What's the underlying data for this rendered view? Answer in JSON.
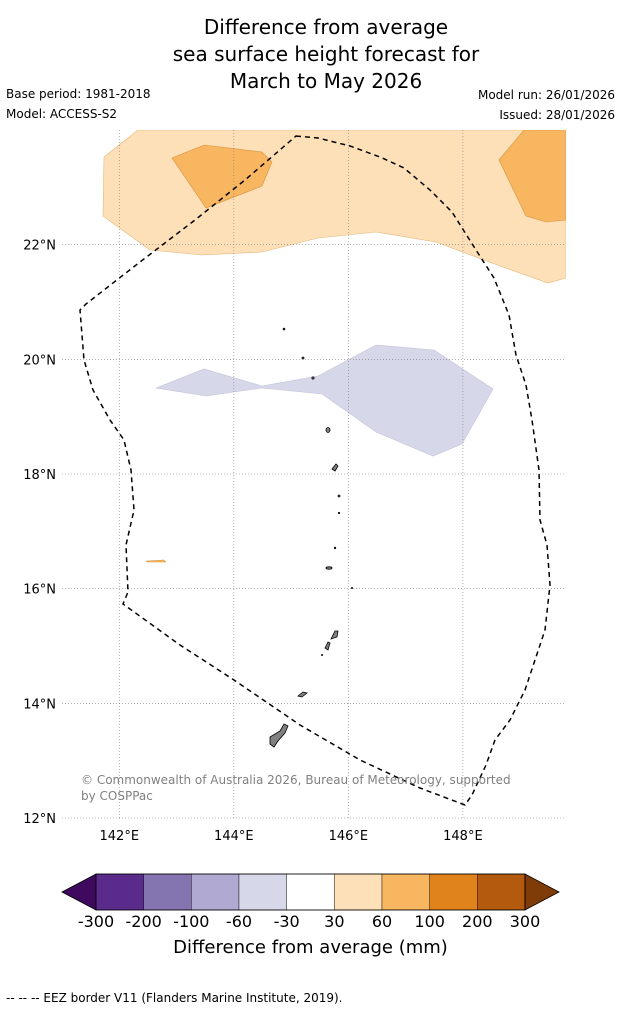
{
  "title_lines": [
    "Difference from average",
    "sea surface height forecast for",
    "March to May 2026"
  ],
  "meta": {
    "base_period": "Base period: 1981-2018",
    "model": "Model: ACCESS-S2",
    "model_run": "Model run: 26/01/2026",
    "issued": "Issued: 28/01/2026"
  },
  "map": {
    "lon_ticks": [
      "142°E",
      "144°E",
      "146°E",
      "148°E"
    ],
    "lat_ticks": [
      "22°N",
      "20°N",
      "18°N",
      "16°N",
      "14°N",
      "12°N"
    ],
    "lon_values": [
      142,
      144,
      146,
      148
    ],
    "lat_values": [
      22,
      20,
      18,
      16,
      14,
      12
    ],
    "lon_range": [
      141,
      149.8
    ],
    "lat_range": [
      12,
      24
    ],
    "copyright": "© Commonwealth of Australia 2026, Bureau of Meteorology, supported by COSPPac"
  },
  "colorbar": {
    "label": "Difference from average (mm)",
    "ticks": [
      "-300",
      "-200",
      "-100",
      "-60",
      "-30",
      "30",
      "60",
      "100",
      "200",
      "300"
    ],
    "colors": [
      "#3f0a5e",
      "#5a2b8a",
      "#8474b0",
      "#b0a9d2",
      "#d6d7e8",
      "#ffffff",
      "#fde0b7",
      "#f9b660",
      "#e0831b",
      "#b35a0e",
      "#7f3b08"
    ]
  },
  "footer": "--  --  -- EEZ border V11 (Flanders Marine Institute, 2019)."
}
